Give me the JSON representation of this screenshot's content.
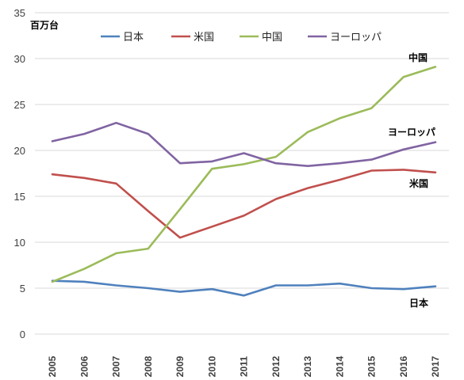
{
  "chart_data": {
    "type": "line",
    "ylabel": "百万台",
    "ylim": [
      0,
      35
    ],
    "yticks": [
      0,
      5,
      10,
      15,
      20,
      25,
      30,
      35
    ],
    "grid": true,
    "legend_position": "top",
    "x": [
      "2005",
      "2006",
      "2007",
      "2008",
      "2009",
      "2010",
      "2011",
      "2012",
      "2013",
      "2014",
      "2015",
      "2016",
      "2017"
    ],
    "series": [
      {
        "name": "日本",
        "color": "#4f81bd",
        "end_label": "日本",
        "values": [
          5.8,
          5.7,
          5.3,
          5.0,
          4.6,
          4.9,
          4.2,
          5.3,
          5.3,
          5.5,
          5.0,
          4.9,
          5.2
        ]
      },
      {
        "name": "米国",
        "color": "#c0504d",
        "end_label": "米国",
        "values": [
          17.4,
          17.0,
          16.4,
          13.4,
          10.5,
          11.7,
          12.9,
          14.7,
          15.9,
          16.8,
          17.8,
          17.9,
          17.6
        ]
      },
      {
        "name": "中国",
        "color": "#9bbb59",
        "end_label": "中国",
        "values": [
          5.7,
          7.1,
          8.8,
          9.3,
          13.6,
          18.0,
          18.5,
          19.3,
          22.0,
          23.5,
          24.6,
          28.0,
          29.1
        ]
      },
      {
        "name": "ヨーロッパ",
        "color": "#8064a2",
        "end_label": "ヨーロッパ",
        "values": [
          21.0,
          21.8,
          23.0,
          21.8,
          18.6,
          18.8,
          19.7,
          18.6,
          18.3,
          18.6,
          19.0,
          20.1,
          20.9
        ]
      }
    ]
  }
}
